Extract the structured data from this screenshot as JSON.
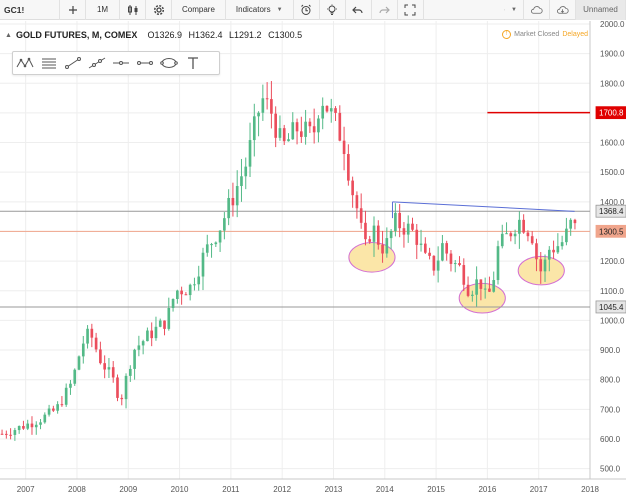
{
  "toolbar": {
    "symbol": "GC1!",
    "interval": "1M",
    "compare": "Compare",
    "indicators": "Indicators",
    "layout_name": "Unnamed",
    "icons": [
      "add-symbol-icon",
      "chart-type-candles-icon",
      "settings-icon",
      "alert-icon",
      "idea-lightbulb-icon",
      "undo-icon",
      "redo-icon",
      "fullscreen-icon",
      "layout-icon",
      "cloud-save-icon",
      "cloud-load-icon"
    ]
  },
  "legend": {
    "title": "GOLD FUTURES, M, COMEX",
    "open": "O1326.9",
    "high": "H1362.4",
    "low": "L1291.2",
    "close": "C1300.5"
  },
  "market_status": {
    "text": "Market Closed",
    "delayed": "Delayed"
  },
  "drawing_tools": [
    "pattern-icon",
    "fib-retracement-icon",
    "trend-line-icon",
    "extended-line-icon",
    "ray-icon",
    "horizontal-segment-icon",
    "ellipse-icon",
    "text-tool-icon"
  ],
  "colors": {
    "up": "#53b987",
    "down": "#eb4d5c",
    "trendline": "#5b6fd6",
    "ellipse_fill": "#fbe6a8",
    "ellipse_stroke": "#d36fd3",
    "resistance": "#e00000",
    "current_price": "#f0a58c",
    "level_line": "#999999"
  },
  "chart_data": {
    "type": "candlestick",
    "x_labels": [
      "2007",
      "2008",
      "2009",
      "2010",
      "2011",
      "2012",
      "2013",
      "2014",
      "2015",
      "2016",
      "2017",
      "2018"
    ],
    "y_ticks": [
      500,
      600,
      700,
      800,
      900,
      1000,
      1100,
      1200,
      1300,
      1400,
      1500,
      1600,
      1700,
      1800,
      1900,
      2000
    ],
    "y_tick_labels": [
      "500.0",
      "600.0",
      "700.0",
      "800.0",
      "900.0",
      "1000.0",
      "1100.0",
      "1200.0",
      "1300.0",
      "1400.0",
      "1500.0",
      "1600.0",
      "1700.0",
      "1800.0",
      "1900.0",
      "2000.0"
    ],
    "ylim": [
      465,
      2010
    ],
    "x_range": [
      2006.5,
      2018.0
    ],
    "price_labels": [
      {
        "value": 1700.8,
        "label": "1700.8",
        "kind": "resistance"
      },
      {
        "value": 1368.4,
        "label": "1368.4",
        "kind": "level"
      },
      {
        "value": 1300.5,
        "label": "1300.5",
        "kind": "current"
      },
      {
        "value": 1045.4,
        "label": "1045.4",
        "kind": "level"
      }
    ],
    "horizontal_lines": [
      {
        "value": 1368.4,
        "from": 2006.5,
        "kind": "level"
      },
      {
        "value": 1300.5,
        "from": 2006.5,
        "kind": "current"
      },
      {
        "value": 1045.4,
        "from": 2006.5,
        "kind": "level"
      },
      {
        "value": 1700.8,
        "from": 2016.0,
        "kind": "resistance"
      }
    ],
    "trendline": {
      "from": [
        2014.15,
        1400
      ],
      "to": [
        2017.7,
        1368
      ]
    },
    "ellipses": [
      {
        "cx": 2013.75,
        "cy": 1213,
        "rx": 0.45,
        "ry": 50
      },
      {
        "cx": 2015.9,
        "cy": 1075,
        "rx": 0.45,
        "ry": 50
      },
      {
        "cx": 2017.05,
        "cy": 1168,
        "rx": 0.45,
        "ry": 48
      }
    ],
    "anchors": [
      [
        2006.5,
        615
      ],
      [
        2006.9,
        640
      ],
      [
        2007.3,
        668
      ],
      [
        2007.6,
        700
      ],
      [
        2007.9,
        790
      ],
      [
        2008.1,
        920
      ],
      [
        2008.25,
        960
      ],
      [
        2008.45,
        870
      ],
      [
        2008.7,
        800
      ],
      [
        2008.85,
        730
      ],
      [
        2009.1,
        900
      ],
      [
        2009.4,
        950
      ],
      [
        2009.75,
        1000
      ],
      [
        2009.92,
        1100
      ],
      [
        2010.2,
        1110
      ],
      [
        2010.5,
        1230
      ],
      [
        2010.8,
        1320
      ],
      [
        2011.0,
        1400
      ],
      [
        2011.3,
        1530
      ],
      [
        2011.6,
        1750
      ],
      [
        2011.8,
        1700
      ],
      [
        2012.0,
        1580
      ],
      [
        2012.3,
        1650
      ],
      [
        2012.6,
        1620
      ],
      [
        2012.75,
        1760
      ],
      [
        2013.0,
        1680
      ],
      [
        2013.2,
        1600
      ],
      [
        2013.35,
        1450
      ],
      [
        2013.5,
        1350
      ],
      [
        2013.6,
        1230
      ],
      [
        2013.75,
        1320
      ],
      [
        2013.9,
        1260
      ],
      [
        2014.0,
        1240
      ],
      [
        2014.2,
        1330
      ],
      [
        2014.45,
        1310
      ],
      [
        2014.6,
        1290
      ],
      [
        2014.8,
        1200
      ],
      [
        2015.0,
        1180
      ],
      [
        2015.1,
        1260
      ],
      [
        2015.3,
        1200
      ],
      [
        2015.5,
        1170
      ],
      [
        2015.65,
        1100
      ],
      [
        2015.85,
        1140
      ],
      [
        2015.98,
        1065
      ],
      [
        2016.1,
        1120
      ],
      [
        2016.2,
        1240
      ],
      [
        2016.45,
        1300
      ],
      [
        2016.6,
        1340
      ],
      [
        2016.75,
        1320
      ],
      [
        2016.9,
        1280
      ],
      [
        2017.0,
        1160
      ],
      [
        2017.1,
        1180
      ],
      [
        2017.2,
        1240
      ],
      [
        2017.35,
        1250
      ],
      [
        2017.5,
        1270
      ],
      [
        2017.6,
        1320
      ],
      [
        2017.68,
        1330
      ],
      [
        2017.72,
        1300
      ]
    ]
  }
}
